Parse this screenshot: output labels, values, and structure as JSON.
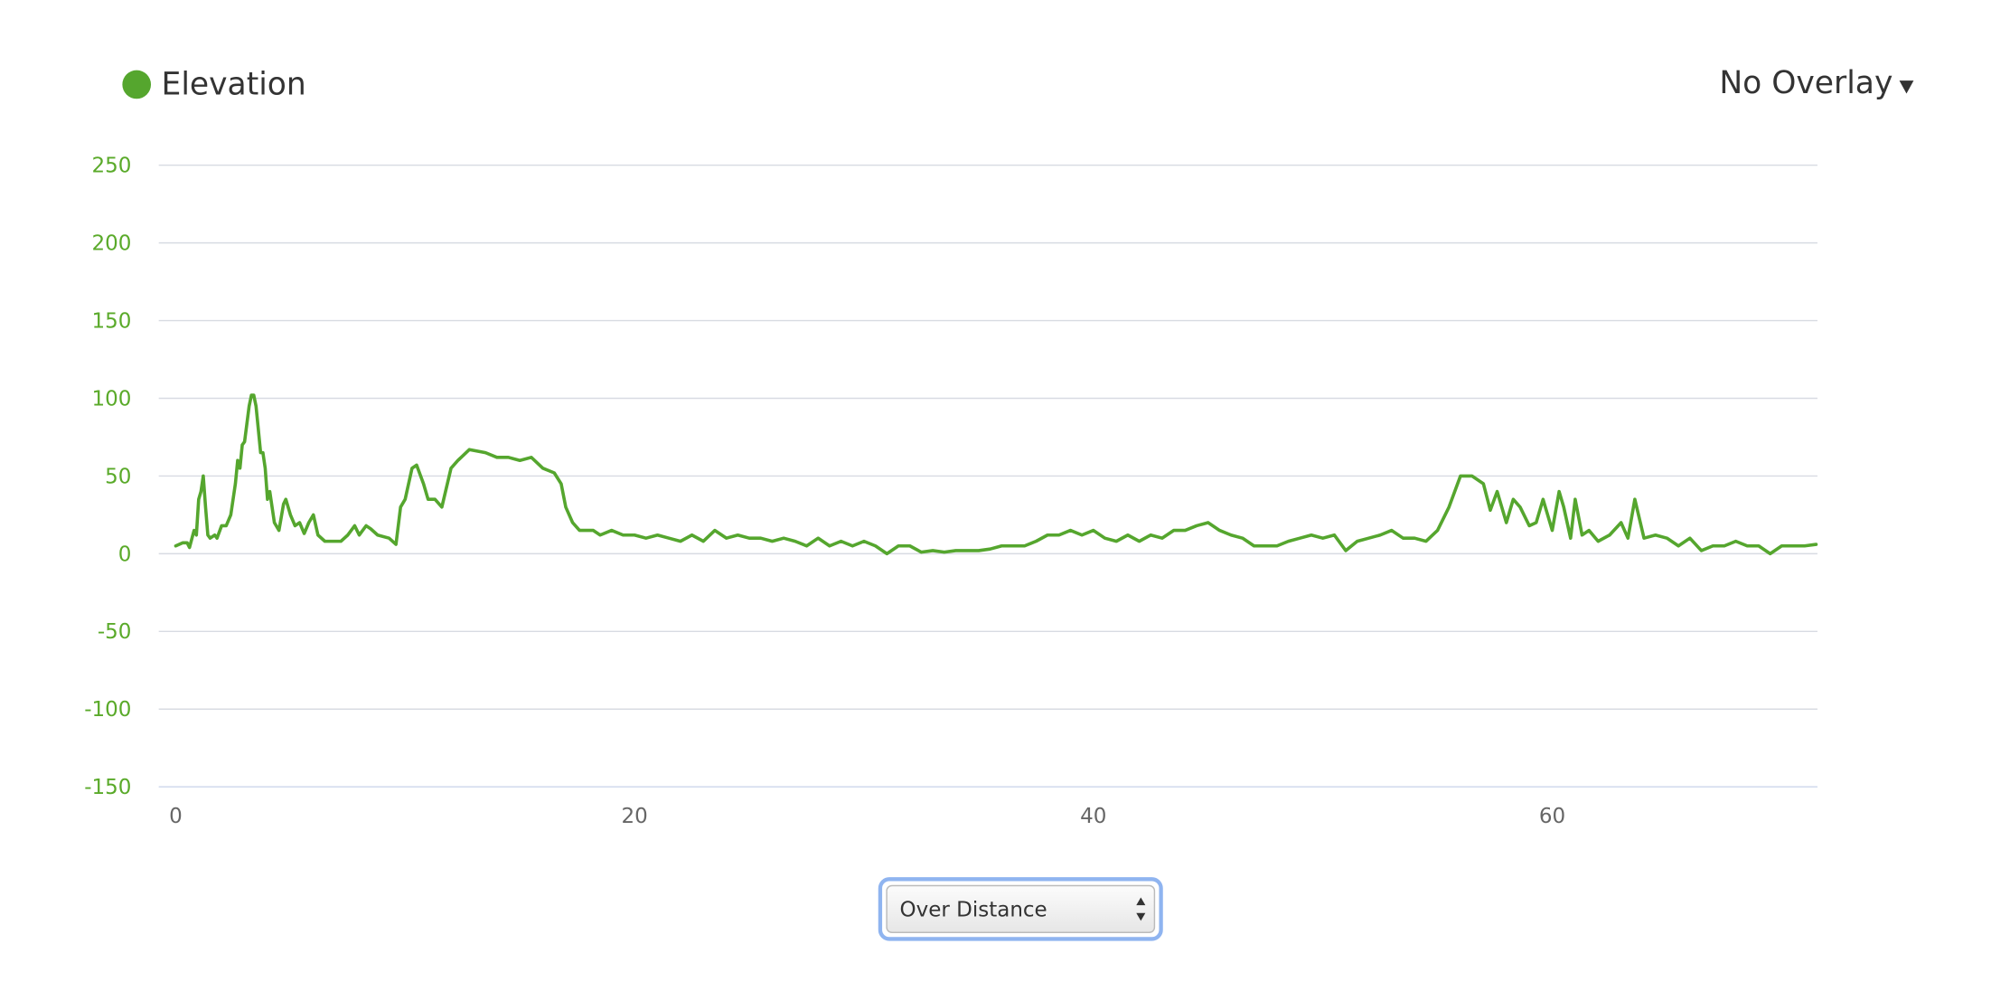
{
  "chart_data": {
    "type": "line",
    "legend_position": "top-left",
    "grid": true,
    "overlay_menu": "No Overlay",
    "x_mode_select": "Over Distance",
    "xlim": [
      -0.74,
      71.56
    ],
    "xticks": [
      0,
      20,
      40,
      60
    ],
    "ylim": [
      -150,
      250
    ],
    "yticks": [
      -150,
      -100,
      -50,
      0,
      50,
      100,
      150,
      200,
      250
    ],
    "x": [
      0,
      0.3,
      0.5,
      0.6,
      0.8,
      0.9,
      1.0,
      1.1,
      1.2,
      1.3,
      1.4,
      1.5,
      1.7,
      1.8,
      2.0,
      2.2,
      2.4,
      2.6,
      2.7,
      2.8,
      2.9,
      3.0,
      3.2,
      3.3,
      3.4,
      3.5,
      3.6,
      3.7,
      3.8,
      3.9,
      4.0,
      4.1,
      4.3,
      4.5,
      4.7,
      4.8,
      5.0,
      5.2,
      5.4,
      5.6,
      5.8,
      6.0,
      6.2,
      6.5,
      6.8,
      7.2,
      7.5,
      7.8,
      8.0,
      8.3,
      8.5,
      8.8,
      9.3,
      9.6,
      9.8,
      10.0,
      10.3,
      10.5,
      10.8,
      11.0,
      11.3,
      11.6,
      12.0,
      12.3,
      12.8,
      13.5,
      14.0,
      14.5,
      15.0,
      15.5,
      16.0,
      16.5,
      16.8,
      17.0,
      17.3,
      17.6,
      18.2,
      18.5,
      19,
      19.5,
      20,
      20.5,
      21,
      21.5,
      22,
      22.5,
      23,
      23.5,
      24,
      24.5,
      25,
      25.5,
      26,
      26.5,
      27,
      27.5,
      28,
      28.5,
      29,
      29.5,
      30,
      30.5,
      31,
      31.5,
      32,
      32.5,
      33,
      33.5,
      34,
      35,
      35.5,
      36,
      36.5,
      37,
      37.5,
      38,
      38.5,
      39,
      39.5,
      40,
      40.5,
      41,
      41.5,
      42,
      42.5,
      43,
      43.5,
      44,
      44.5,
      45,
      45.5,
      46,
      46.5,
      47,
      47.5,
      48,
      48.5,
      49,
      49.5,
      50,
      50.5,
      51,
      51.5,
      52,
      52.5,
      53,
      53.5,
      54,
      54.5,
      55,
      55.5,
      56,
      56.5,
      57,
      57.3,
      57.6,
      58,
      58.3,
      58.6,
      59,
      59.3,
      59.6,
      60,
      60.3,
      60.5,
      60.8,
      61,
      61.3,
      61.6,
      62,
      62.5,
      63,
      63.3,
      63.6,
      64,
      64.5,
      65,
      65.5,
      66,
      66.5,
      67,
      67.5,
      68,
      68.5,
      69,
      69.5,
      70,
      70.5,
      71,
      71.5
    ],
    "series": [
      {
        "name": "Elevation",
        "color": "#55a62e",
        "values": [
          5,
          7,
          7,
          4,
          15,
          12,
          35,
          40,
          50,
          30,
          12,
          10,
          12,
          10,
          18,
          18,
          25,
          45,
          60,
          55,
          70,
          72,
          95,
          102,
          102,
          95,
          80,
          65,
          65,
          55,
          35,
          40,
          20,
          15,
          32,
          35,
          25,
          18,
          20,
          13,
          20,
          25,
          12,
          8,
          8,
          8,
          12,
          18,
          12,
          18,
          16,
          12,
          10,
          6,
          30,
          35,
          55,
          57,
          45,
          35,
          35,
          30,
          55,
          60,
          67,
          65,
          62,
          62,
          60,
          62,
          55,
          52,
          45,
          30,
          20,
          15,
          15,
          12,
          15,
          12,
          12,
          10,
          12,
          10,
          8,
          12,
          8,
          15,
          10,
          12,
          10,
          10,
          8,
          10,
          8,
          5,
          10,
          5,
          8,
          5,
          8,
          5,
          0,
          5,
          5,
          1,
          2,
          1,
          2,
          2,
          3,
          5,
          5,
          5,
          8,
          12,
          12,
          15,
          12,
          15,
          10,
          8,
          12,
          8,
          12,
          10,
          15,
          15,
          18,
          20,
          15,
          12,
          10,
          5,
          5,
          5,
          8,
          10,
          12,
          10,
          12,
          2,
          8,
          10,
          12,
          15,
          10,
          10,
          8,
          15,
          30,
          50,
          50,
          45,
          28,
          40,
          20,
          35,
          30,
          18,
          20,
          35,
          15,
          40,
          30,
          10,
          35,
          12,
          15,
          8,
          12,
          20,
          10,
          35,
          10,
          12,
          10,
          5,
          10,
          2,
          5,
          5,
          8,
          5,
          5,
          0,
          5,
          5,
          5,
          6
        ]
      }
    ]
  }
}
